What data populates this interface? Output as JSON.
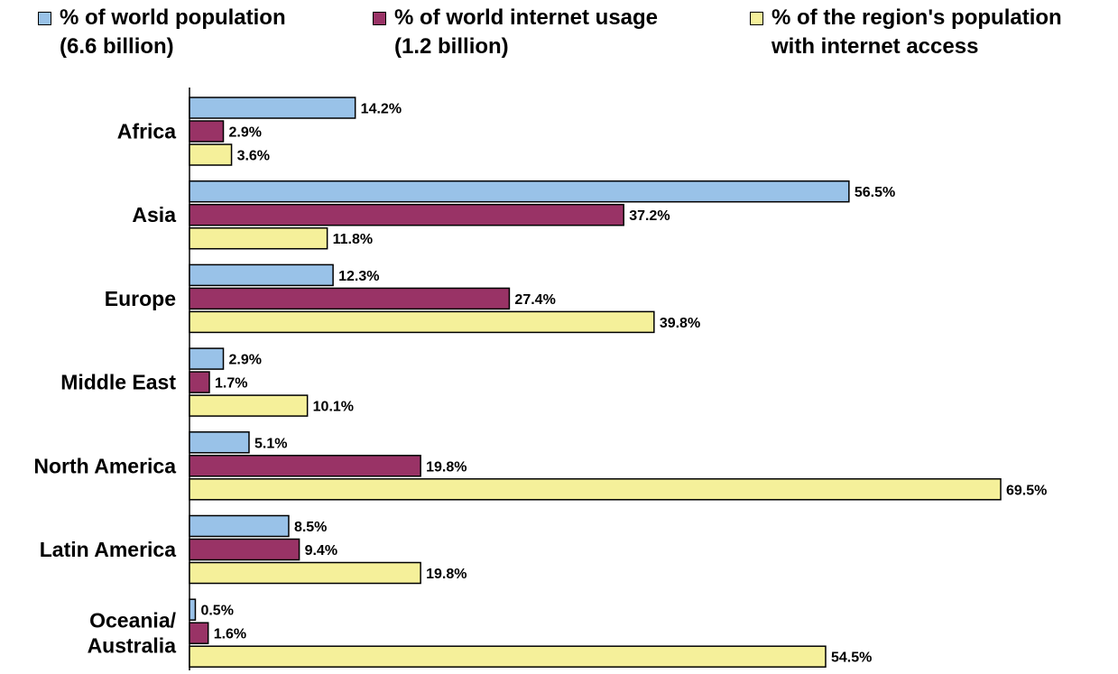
{
  "chart_data": {
    "type": "bar",
    "orientation": "horizontal",
    "categories": [
      "Africa",
      "Asia",
      "Europe",
      "Middle East",
      "North America",
      "Latin America",
      "Oceania/ Australia"
    ],
    "series": [
      {
        "name": "% of world population (6.6 billion)",
        "name_lines": [
          "% of world population",
          "(6.6 billion)"
        ],
        "color": "#99c2e8",
        "values": [
          14.2,
          56.5,
          12.3,
          2.9,
          5.1,
          8.5,
          0.5
        ],
        "labels": [
          "14.2%",
          "56.5%",
          "12.3%",
          "2.9%",
          "5.1%",
          "8.5%",
          "0.5%"
        ]
      },
      {
        "name": "% of world internet usage (1.2 billion)",
        "name_lines": [
          "% of world internet usage",
          "(1.2 billion)"
        ],
        "color": "#993366",
        "values": [
          2.9,
          37.2,
          27.4,
          1.7,
          19.8,
          9.4,
          1.6
        ],
        "labels": [
          "2.9%",
          "37.2%",
          "27.4%",
          "1.7%",
          "19.8%",
          "9.4%",
          "1.6%"
        ]
      },
      {
        "name": "% of the region's population with internet access",
        "name_lines": [
          "% of the region's population",
          "with internet access"
        ],
        "color": "#f5f09a",
        "values": [
          3.6,
          11.8,
          39.8,
          10.1,
          69.5,
          19.8,
          54.5
        ],
        "labels": [
          "3.6%",
          "11.8%",
          "39.8%",
          "10.1%",
          "69.5%",
          "19.8%",
          "54.5%"
        ]
      }
    ],
    "xlim": [
      0,
      69.5
    ],
    "legend_position": "top",
    "grid": false
  }
}
